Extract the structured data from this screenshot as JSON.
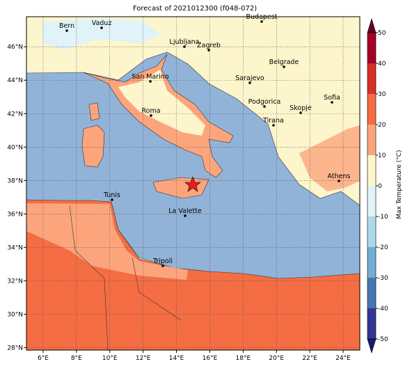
{
  "title": "Forecast of 2021012300 (f048-072)",
  "map": {
    "lonlim": [
      5,
      25
    ],
    "latlim": [
      27.85,
      47.8
    ],
    "lon_ticks": [
      {
        "value": 6,
        "label": "6°E"
      },
      {
        "value": 8,
        "label": "8°E"
      },
      {
        "value": 10,
        "label": "10°E"
      },
      {
        "value": 12,
        "label": "12°E"
      },
      {
        "value": 14,
        "label": "14°E"
      },
      {
        "value": 16,
        "label": "16°E"
      },
      {
        "value": 18,
        "label": "18°E"
      },
      {
        "value": 20,
        "label": "20°E"
      },
      {
        "value": 22,
        "label": "22°E"
      },
      {
        "value": 24,
        "label": "24°E"
      }
    ],
    "lat_ticks": [
      {
        "value": 28,
        "label": "28°N"
      },
      {
        "value": 30,
        "label": "30°N"
      },
      {
        "value": 32,
        "label": "32°N"
      },
      {
        "value": 34,
        "label": "34°N"
      },
      {
        "value": 36,
        "label": "36°N"
      },
      {
        "value": 38,
        "label": "38°N"
      },
      {
        "value": 40,
        "label": "40°N"
      },
      {
        "value": 42,
        "label": "42°N"
      },
      {
        "value": 44,
        "label": "44°N"
      },
      {
        "value": 46,
        "label": "46°N"
      }
    ],
    "cities": [
      "Bern",
      "Vaduz",
      "Budapest",
      "Ljubljana",
      "Zagreb",
      "Belgrade",
      "San Marino",
      "Sarajevo",
      "Sofia",
      "Podgorica",
      "Skopje",
      "Roma",
      "Tirana",
      "Athens",
      "Tunis",
      "La Valette",
      "Tripoli"
    ]
  },
  "colorbar": {
    "label": "Max Temperature (°C)",
    "ticks": [
      -50,
      -40,
      -30,
      -20,
      -10,
      0,
      10,
      20,
      30,
      40,
      50
    ],
    "colors": [
      "#313695",
      "#4575b4",
      "#74add1",
      "#abd9e9",
      "#e0f3f8",
      "#fdf5cc",
      "#fca57d",
      "#f46d43",
      "#d73027",
      "#a50026"
    ],
    "under_color": "#1a1a6e",
    "over_color": "#67001f"
  }
}
